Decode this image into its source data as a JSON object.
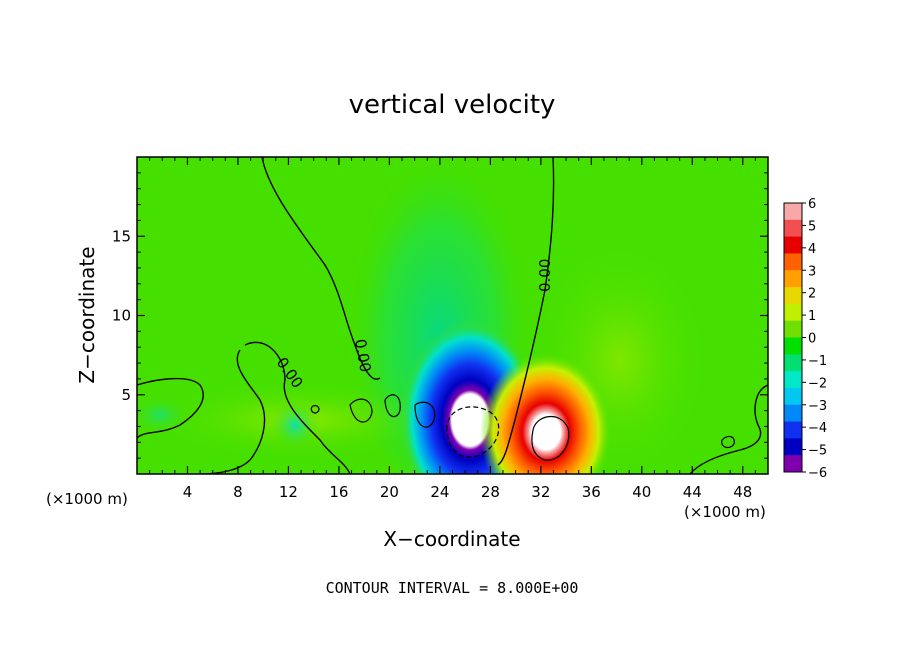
{
  "chart_data": {
    "type": "heatmap",
    "title": "vertical velocity",
    "xlabel": "X−coordinate",
    "ylabel": "Z−coordinate",
    "x_unit_label": "(×1000 m)",
    "y_unit_label": "(×1000 m)",
    "xlim": [
      0,
      50
    ],
    "ylim": [
      0,
      20
    ],
    "xticks": [
      4,
      8,
      12,
      16,
      20,
      24,
      28,
      32,
      36,
      40,
      44,
      48
    ],
    "yticks": [
      5,
      10,
      15
    ],
    "colorbar": {
      "ticks": [
        6,
        5,
        4,
        3,
        2,
        1,
        0,
        -1,
        -2,
        -3,
        -4,
        -5,
        -6
      ],
      "tick_labels": [
        "6",
        "5",
        "4",
        "3",
        "2",
        "1",
        "0",
        "−1",
        "−2",
        "−3",
        "−4",
        "−5",
        "−6"
      ],
      "colors": [
        "#f7a8a8",
        "#f25050",
        "#e80000",
        "#ff6000",
        "#ffa000",
        "#e8d800",
        "#c0f000",
        "#70e000",
        "#00e000",
        "#00e070",
        "#00e8c8",
        "#00c8f0",
        "#0088f8",
        "#1030f0",
        "#0000c0",
        "#8000b0"
      ]
    },
    "field": {
      "background": "#46e000",
      "updraft_center": [
        32.5,
        2.5
      ],
      "downdraft_center": [
        26.5,
        2.6
      ],
      "updraft_max": 6,
      "downdraft_min": -6
    },
    "contour_labels": [
      "0.00",
      "0.00",
      "0.00"
    ],
    "footer": "CONTOUR INTERVAL = 8.000E+00"
  }
}
